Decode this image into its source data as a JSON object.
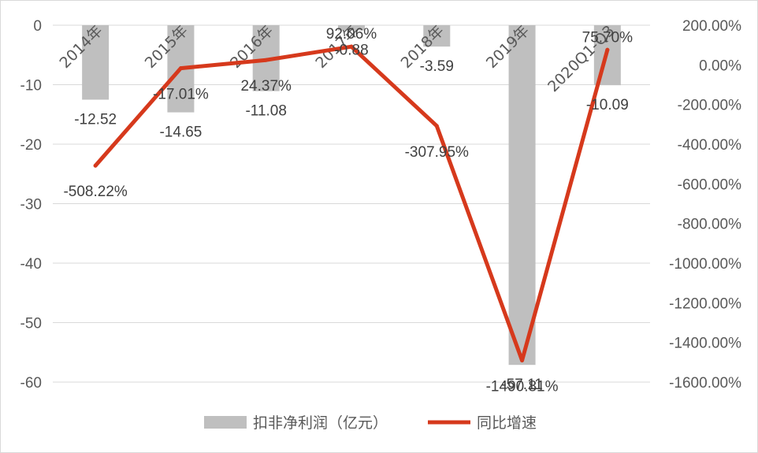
{
  "chart_data": {
    "type": "bar",
    "categories": [
      "2014年",
      "2015年",
      "2016年",
      "2017年",
      "2018年",
      "2019年",
      "2020Q1-Q3"
    ],
    "series": [
      {
        "name": "扣非净利润（亿元）",
        "type": "bar",
        "axis": "left",
        "values": [
          -12.52,
          -14.65,
          -11.08,
          -0.88,
          -3.59,
          -57.11,
          -10.09
        ],
        "labels": [
          "-12.52",
          "-14.65",
          "-11.08",
          "-0.88",
          "-3.59",
          "-57.11",
          "-10.09"
        ],
        "color": "#bfbfbf"
      },
      {
        "name": "同比增速",
        "type": "line",
        "axis": "right",
        "values": [
          -508.22,
          -17.01,
          24.37,
          92.06,
          -307.95,
          -1490.81,
          75.7
        ],
        "labels": [
          "-508.22%",
          "-17.01%",
          "24.37%",
          "92.06%",
          "-307.95%",
          "-1490.81%",
          "75.70%"
        ],
        "color": "#d6391c"
      }
    ],
    "left_axis": {
      "ylim": [
        -60,
        0
      ],
      "ticks": [
        0,
        -10,
        -20,
        -30,
        -40,
        -50,
        -60
      ],
      "tick_labels": [
        "0",
        "-10",
        "-20",
        "-30",
        "-40",
        "-50",
        "-60"
      ]
    },
    "right_axis": {
      "ylim": [
        -1600,
        200
      ],
      "ticks": [
        200,
        0,
        -200,
        -400,
        -600,
        -800,
        -1000,
        -1200,
        -1400,
        -1600
      ],
      "tick_labels": [
        "200.00%",
        "0.00%",
        "-200.00%",
        "-400.00%",
        "-600.00%",
        "-800.00%",
        "-1000.00%",
        "-1200.00%",
        "-1400.00%",
        "-1600.00%"
      ]
    },
    "grid": true,
    "legend_position": "bottom",
    "title": "",
    "xlabel": "",
    "ylabel": ""
  }
}
